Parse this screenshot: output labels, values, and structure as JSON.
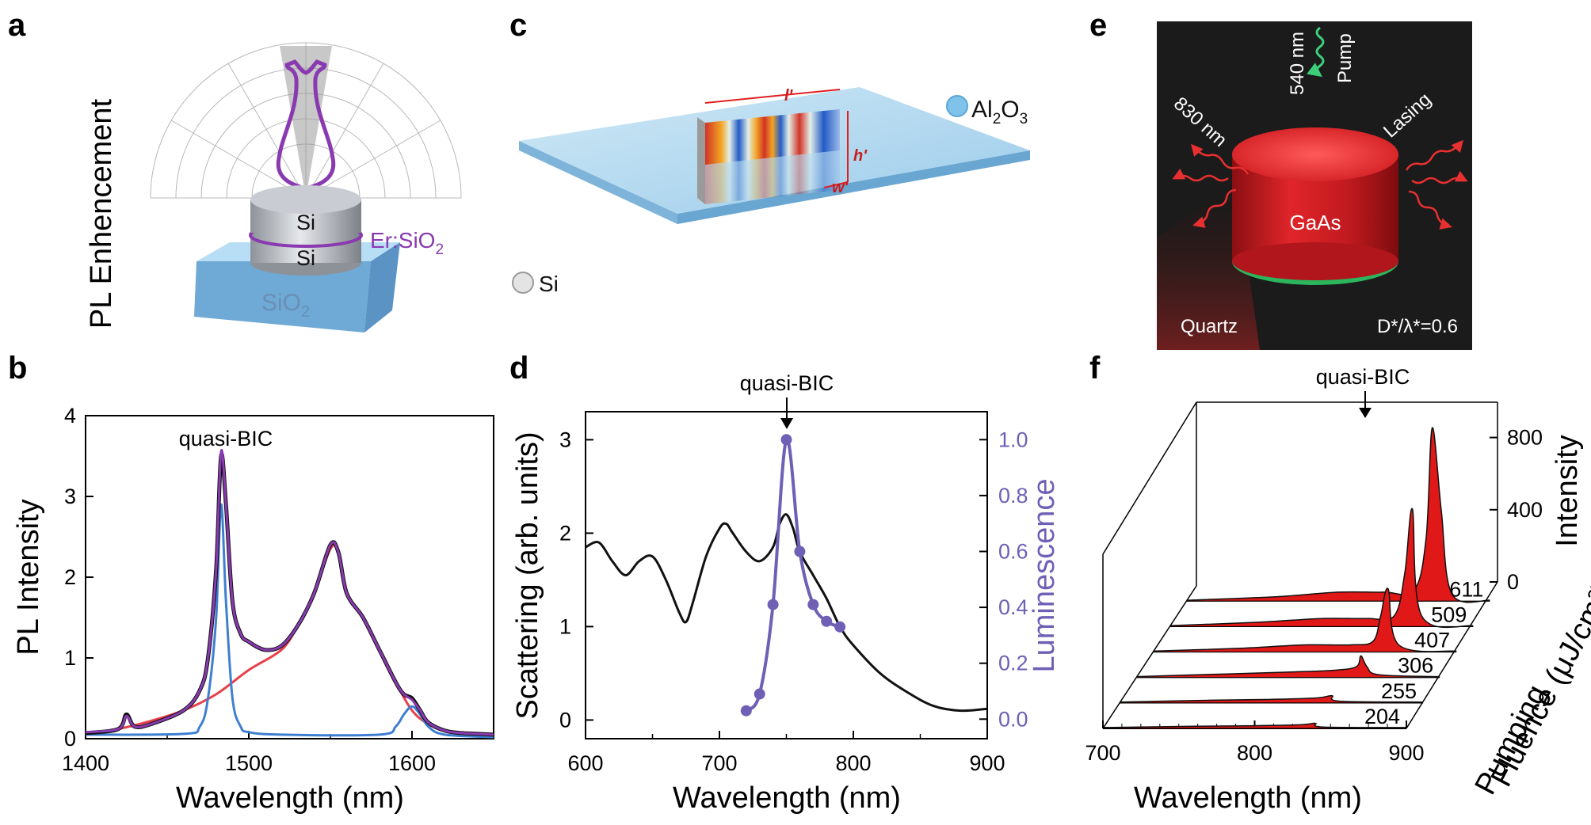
{
  "panels": {
    "a": {
      "label": "a",
      "ylabel": "PL Enhencement",
      "layer_top": "Si",
      "layer_bottom": "Si",
      "layer_er": "Er:SiO",
      "layer_er_sub": "2",
      "substrate": "SiO",
      "substrate_sub": "2"
    },
    "b": {
      "label": "b"
    },
    "c": {
      "label": "c",
      "dim_l": "l'",
      "dim_h": "h'",
      "dim_w": "w'",
      "legend_si": "Si",
      "legend_al": "Al",
      "legend_al_sub1": "2",
      "legend_al_o": "O",
      "legend_al_sub2": "3"
    },
    "d": {
      "label": "d"
    },
    "e": {
      "label": "e",
      "pump_wavelength": "540 nm",
      "pump": "Pump",
      "emission_wavelength": "830 nm",
      "lasing": "Lasing",
      "material": "GaAs",
      "substrate": "Quartz",
      "ratio": "D*/λ*=0.6"
    },
    "f": {
      "label": "f"
    }
  },
  "colors": {
    "measured": "#111111",
    "fit_total": "#8a3ab0",
    "fit_peak": "#3f7fd0",
    "fit_background": "#e8404a",
    "luminescence": "#6f5fb5",
    "lasing_fill": "#e01818",
    "substrate_blue": "#8ec5e8",
    "gaas_red": "#d81c22",
    "pump_green": "#3ccf7a"
  },
  "chart_data": [
    {
      "panel": "b",
      "type": "line",
      "title": "",
      "annotation": "quasi-BIC",
      "xlabel": "Wavelength (nm)",
      "ylabel": "PL Intensity",
      "xlim": [
        1400,
        1650
      ],
      "ylim": [
        0,
        4
      ],
      "xticks": [
        1400,
        1500,
        1600
      ],
      "yticks": [
        0,
        1,
        2,
        3,
        4
      ],
      "series": [
        {
          "x": [
            1400,
            1420,
            1425,
            1430,
            1440,
            1460,
            1470,
            1475,
            1480,
            1483,
            1486,
            1490,
            1495,
            1500,
            1510,
            1520,
            1530,
            1540,
            1550,
            1555,
            1560,
            1570,
            1580,
            1590,
            1595,
            1600,
            1605,
            1610,
            1620,
            1630,
            1640,
            1650
          ],
          "y": [
            0.07,
            0.12,
            0.3,
            0.15,
            0.18,
            0.35,
            0.6,
            1.0,
            2.1,
            3.5,
            2.9,
            1.7,
            1.3,
            1.2,
            1.1,
            1.15,
            1.4,
            1.8,
            2.4,
            2.3,
            1.8,
            1.5,
            1.1,
            0.7,
            0.55,
            0.5,
            0.35,
            0.2,
            0.1,
            0.07,
            0.06,
            0.05
          ]
        },
        {
          "x": [
            1400,
            1420,
            1425,
            1430,
            1440,
            1460,
            1470,
            1475,
            1480,
            1483,
            1486,
            1490,
            1495,
            1500,
            1510,
            1520,
            1530,
            1540,
            1550,
            1555,
            1560,
            1570,
            1580,
            1590,
            1595,
            1600,
            1605,
            1610,
            1620,
            1630,
            1640,
            1650
          ],
          "y": [
            0.08,
            0.12,
            0.28,
            0.15,
            0.18,
            0.35,
            0.6,
            1.0,
            2.1,
            3.55,
            2.9,
            1.7,
            1.3,
            1.2,
            1.1,
            1.15,
            1.4,
            1.8,
            2.4,
            2.3,
            1.8,
            1.5,
            1.1,
            0.7,
            0.55,
            0.48,
            0.35,
            0.2,
            0.1,
            0.07,
            0.06,
            0.05
          ]
        },
        {
          "x": [
            1400,
            1460,
            1470,
            1475,
            1480,
            1483,
            1486,
            1490,
            1495,
            1500,
            1520,
            1580,
            1590,
            1595,
            1600,
            1605,
            1610,
            1620,
            1650
          ],
          "y": [
            0.05,
            0.06,
            0.15,
            0.5,
            1.5,
            2.9,
            1.7,
            0.5,
            0.15,
            0.08,
            0.05,
            0.05,
            0.15,
            0.3,
            0.4,
            0.3,
            0.15,
            0.05,
            0.02
          ]
        },
        {
          "x": [
            1400,
            1420,
            1440,
            1460,
            1480,
            1500,
            1520,
            1530,
            1540,
            1550,
            1555,
            1560,
            1570,
            1580,
            1590,
            1600,
            1610,
            1620,
            1630,
            1650
          ],
          "y": [
            0.06,
            0.12,
            0.22,
            0.35,
            0.55,
            0.85,
            1.1,
            1.4,
            1.8,
            2.35,
            2.3,
            1.8,
            1.5,
            1.1,
            0.7,
            0.35,
            0.18,
            0.1,
            0.07,
            0.05
          ]
        }
      ]
    },
    {
      "panel": "d",
      "type": "line",
      "title": "",
      "annotation": "quasi-BIC",
      "xlabel": "Wavelength (nm)",
      "ylabel": "Scattering (arb. units)",
      "ylabel_right": "Luminescence",
      "xlim": [
        600,
        900
      ],
      "ylim": [
        -0.2,
        3.3
      ],
      "ylim_right": [
        -0.07,
        1.1
      ],
      "xticks": [
        600,
        700,
        800,
        900
      ],
      "yticks": [
        0,
        1,
        2,
        3
      ],
      "yticks_right": [
        0.0,
        0.2,
        0.4,
        0.6,
        0.8,
        1.0
      ],
      "series": [
        {
          "x": [
            600,
            610,
            620,
            630,
            640,
            650,
            660,
            670,
            675,
            680,
            690,
            700,
            705,
            710,
            720,
            730,
            740,
            745,
            750,
            755,
            760,
            770,
            780,
            790,
            800,
            820,
            840,
            860,
            880,
            900
          ],
          "y": [
            1.85,
            1.9,
            1.7,
            1.55,
            1.7,
            1.75,
            1.5,
            1.15,
            1.05,
            1.25,
            1.75,
            2.05,
            2.1,
            2.0,
            1.8,
            1.7,
            1.85,
            2.1,
            2.2,
            2.05,
            1.8,
            1.55,
            1.3,
            1.0,
            0.8,
            0.5,
            0.3,
            0.15,
            0.1,
            0.12
          ]
        },
        {
          "x": [
            720,
            730,
            740,
            750,
            760,
            770,
            780,
            790
          ],
          "y": [
            0.03,
            0.09,
            0.41,
            1.0,
            0.6,
            0.41,
            0.35,
            0.33
          ]
        }
      ]
    },
    {
      "panel": "f",
      "type": "line",
      "title": "",
      "annotation": "quasi-BIC",
      "xlabel": "Wavelength (nm)",
      "ylabel": "Intensity",
      "zlabel_line1": "Pumping",
      "zlabel_line2": "Fluence (μJ/cm²)",
      "xlim": [
        700,
        900
      ],
      "ylim": [
        0,
        1000
      ],
      "xticks": [
        700,
        800,
        900
      ],
      "yticks": [
        0,
        400,
        800
      ],
      "series": [
        {
          "name": "204",
          "x": [
            700,
            760,
            800,
            830,
            840,
            845,
            900
          ],
          "y": [
            5,
            12,
            15,
            20,
            28,
            8,
            5
          ]
        },
        {
          "name": "255",
          "x": [
            700,
            760,
            800,
            830,
            840,
            845,
            900
          ],
          "y": [
            5,
            15,
            20,
            28,
            40,
            10,
            5
          ]
        },
        {
          "name": "306",
          "x": [
            700,
            760,
            800,
            830,
            845,
            848,
            852,
            860,
            900
          ],
          "y": [
            5,
            20,
            30,
            40,
            60,
            120,
            60,
            15,
            5
          ]
        },
        {
          "name": "407",
          "x": [
            700,
            760,
            800,
            830,
            845,
            850,
            855,
            862,
            900
          ],
          "y": [
            5,
            22,
            40,
            40,
            60,
            200,
            350,
            40,
            5
          ]
        },
        {
          "name": "509",
          "x": [
            700,
            760,
            800,
            830,
            848,
            855,
            860,
            866,
            900
          ],
          "y": [
            5,
            25,
            45,
            45,
            60,
            300,
            650,
            60,
            5
          ]
        },
        {
          "name": "611",
          "x": [
            700,
            760,
            800,
            830,
            850,
            858,
            862,
            868,
            875,
            900
          ],
          "y": [
            5,
            25,
            50,
            50,
            60,
            350,
            960,
            500,
            40,
            5
          ]
        }
      ]
    }
  ]
}
